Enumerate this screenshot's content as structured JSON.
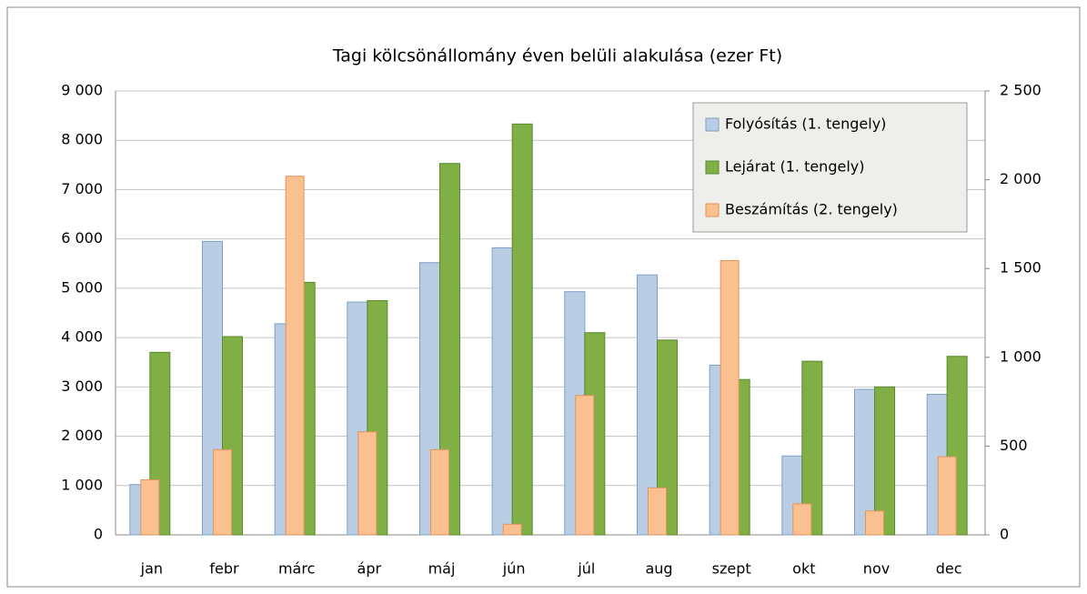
{
  "chart_data": {
    "type": "bar",
    "title": "Tagi kölcsönállomány éven belüli alakulása  (ezer Ft)",
    "categories": [
      "jan",
      "febr",
      "márc",
      "ápr",
      "máj",
      "jún",
      "júl",
      "aug",
      "szept",
      "okt",
      "nov",
      "dec"
    ],
    "series": [
      {
        "name": "Folyósítás (1. tengely)",
        "color": "#b9cde5",
        "values": [
          1020,
          5950,
          4280,
          4720,
          5520,
          5820,
          4930,
          5270,
          3440,
          1600,
          2950,
          2850
        ]
      },
      {
        "name": "Lejárat (1. tengely)",
        "color": "#7faf45",
        "values": [
          3700,
          4020,
          5120,
          4750,
          7530,
          8330,
          4100,
          3950,
          3150,
          3520,
          3000,
          3620
        ]
      },
      {
        "name": "Beszámítás (2. tengely)",
        "color": "#fac090",
        "axis": "y2",
        "values": [
          310,
          480,
          2020,
          580,
          480,
          60,
          785,
          265,
          1545,
          175,
          135,
          440
        ]
      }
    ],
    "ylim": [
      0,
      9000
    ],
    "yticks": [
      0,
      {
        "value": 1000,
        "label": "1 000"
      },
      {
        "value": 2000,
        "label": "2 000"
      },
      {
        "value": 3000,
        "label": "3 000"
      },
      {
        "value": 4000,
        "label": "4 000"
      },
      {
        "value": 5000,
        "label": "5 000"
      },
      {
        "value": 6000,
        "label": "6 000"
      },
      {
        "value": 7000,
        "label": "7 000"
      },
      {
        "value": 8000,
        "label": "8 000"
      },
      {
        "value": 9000,
        "label": "9 000"
      }
    ],
    "y2lim": [
      0,
      2500
    ],
    "y2ticks": [
      0,
      500,
      {
        "value": 1000,
        "label": "1 000"
      },
      {
        "value": 1500,
        "label": "1 500"
      },
      {
        "value": 2000,
        "label": "2 000"
      },
      {
        "value": 2500,
        "label": "2 500"
      }
    ],
    "grid": true,
    "legend": "top-right"
  }
}
